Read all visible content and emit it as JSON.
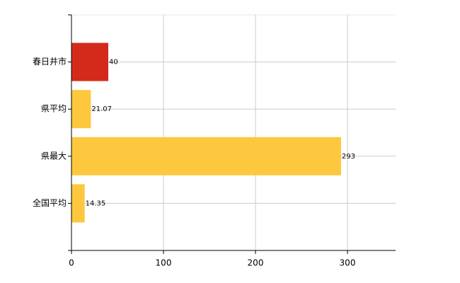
{
  "chart_data": {
    "type": "hbar",
    "categories": [
      "春日井市",
      "県平均",
      "県最大",
      "全国平均"
    ],
    "values": [
      40,
      21.07,
      293,
      14.35
    ],
    "colors": [
      "#d42a1c",
      "#fdc83e",
      "#fdc83e",
      "#fdc83e"
    ],
    "xlim": [
      0,
      350
    ],
    "xticks": [
      0,
      100,
      200,
      300
    ],
    "grid": true,
    "data_labels": true
  }
}
